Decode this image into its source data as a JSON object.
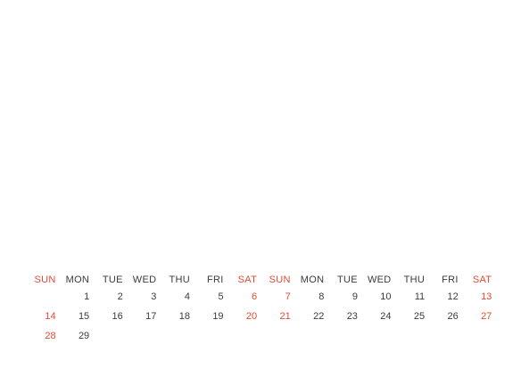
{
  "calendar": {
    "weekday_headers": [
      "SUN",
      "MON",
      "TUE",
      "WED",
      "THU",
      "FRI",
      "SAT",
      "SUN",
      "MON",
      "TUE",
      "WED",
      "THU",
      "FRI",
      "SAT"
    ],
    "weeks": [
      [
        "",
        "1",
        "2",
        "3",
        "4",
        "5",
        "6",
        "7",
        "8",
        "9",
        "10",
        "11",
        "12",
        "13"
      ],
      [
        "14",
        "15",
        "16",
        "17",
        "18",
        "19",
        "20",
        "21",
        "22",
        "23",
        "24",
        "25",
        "26",
        "27"
      ],
      [
        "28",
        "29",
        "",
        "",
        "",
        "",
        "",
        "",
        "",
        "",
        "",
        "",
        "",
        ""
      ]
    ],
    "colors": {
      "weekend": "#e04a33",
      "weekday": "#3b3b3b",
      "background": "#ffffff"
    }
  }
}
